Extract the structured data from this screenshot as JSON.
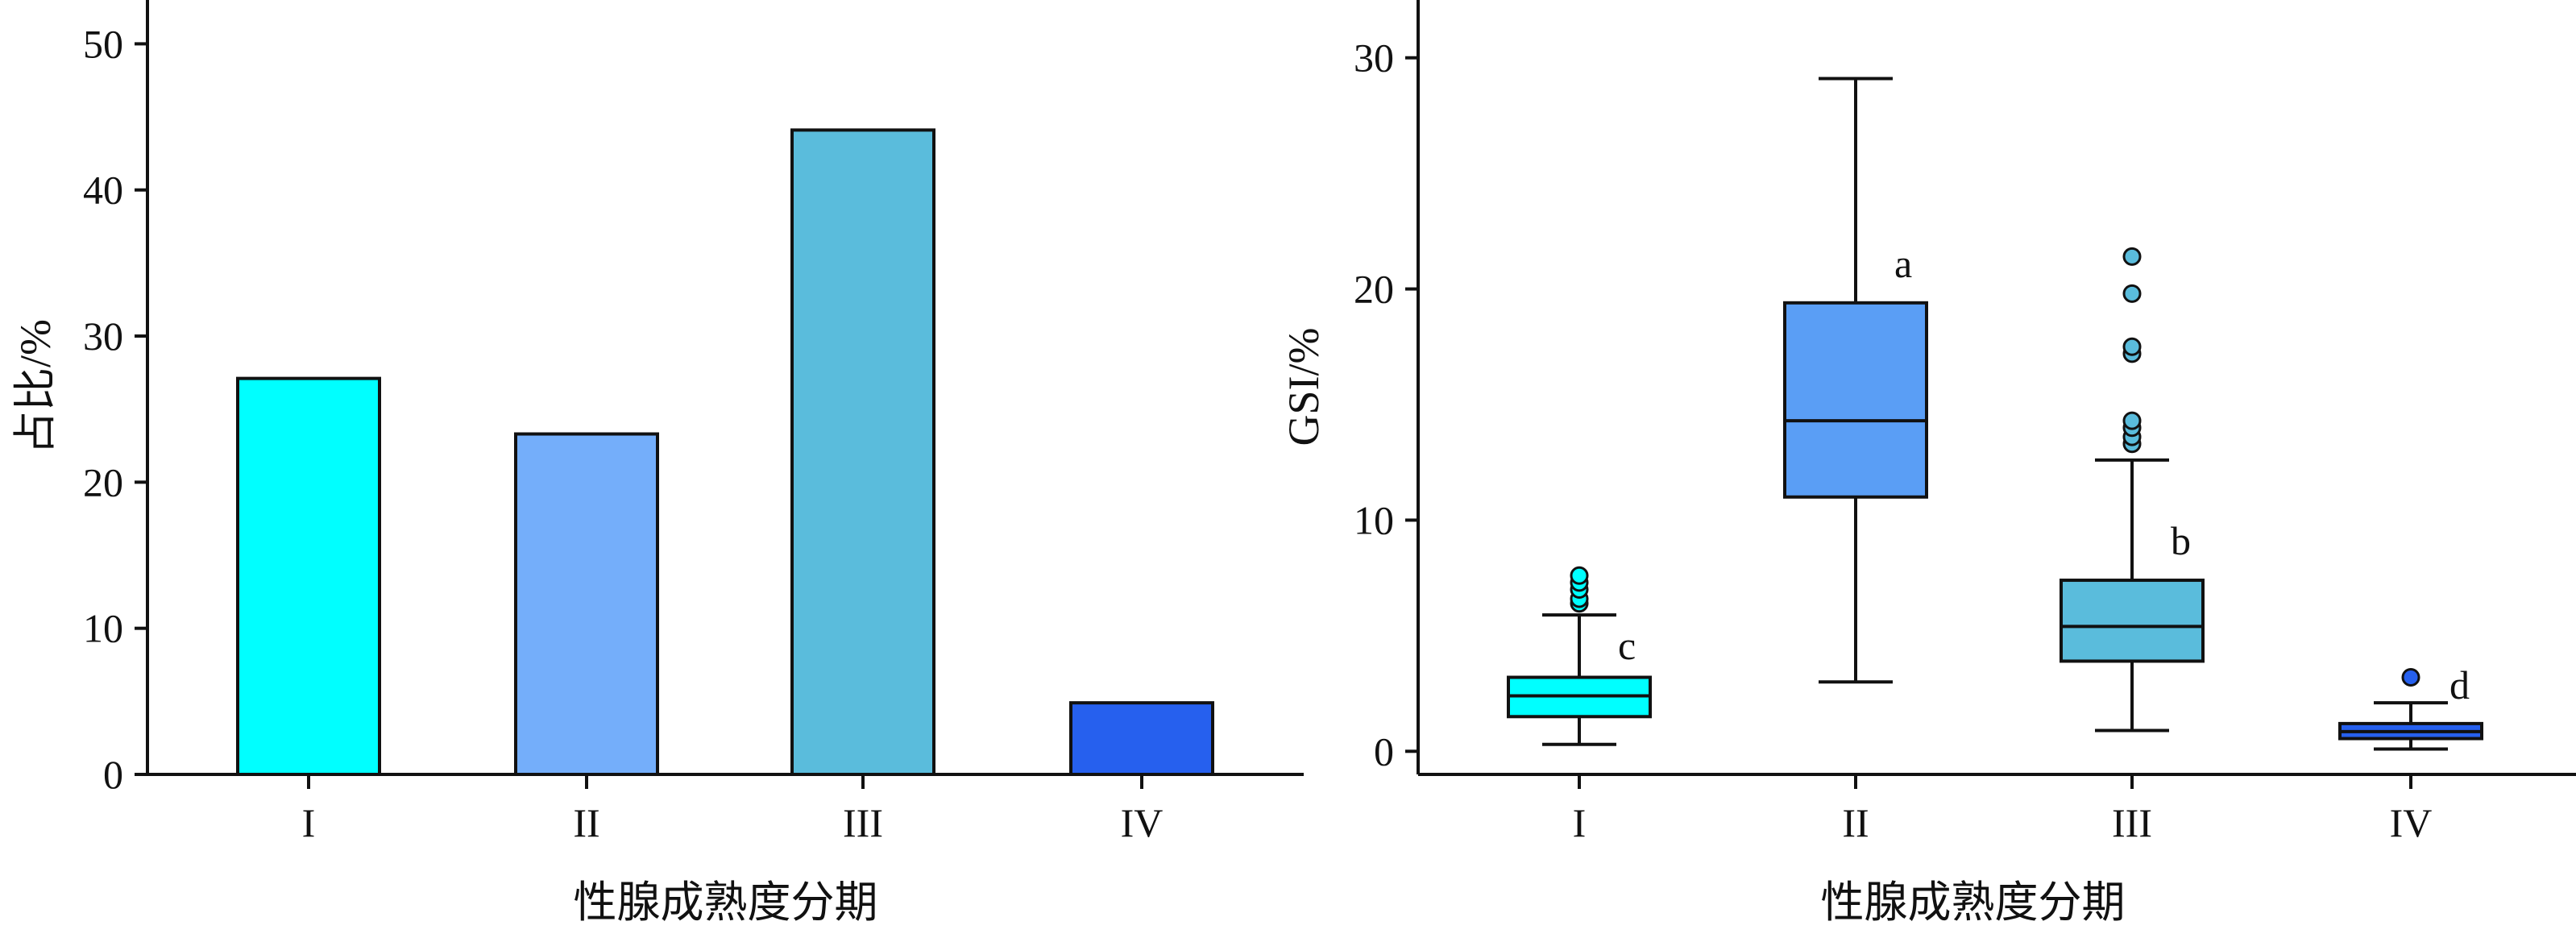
{
  "chart_data": [
    {
      "type": "bar",
      "categories": [
        "I",
        "II",
        "III",
        "IV"
      ],
      "values": [
        27.1,
        23.3,
        44.1,
        4.9
      ],
      "colors": [
        "#00FFFF",
        "#74AEFA",
        "#5ABCDC",
        "#2660EE"
      ],
      "xlabel": "性腺成熟度分期",
      "ylabel": "占比/%",
      "ylim": [
        0,
        53
      ],
      "yticks": [
        0,
        10,
        20,
        30,
        40,
        50
      ],
      "grid": false
    },
    {
      "type": "box",
      "categories": [
        "I",
        "II",
        "III",
        "IV"
      ],
      "boxes": [
        {
          "whisker_low": 0.3,
          "q1": 1.5,
          "median": 2.4,
          "q3": 3.2,
          "whisker_high": 5.9,
          "outliers": [
            6.4,
            6.6,
            7.0,
            7.3,
            7.6
          ],
          "letter": "c"
        },
        {
          "whisker_low": 3.0,
          "q1": 11.0,
          "median": 14.3,
          "q3": 19.4,
          "whisker_high": 29.1,
          "outliers": [],
          "letter": "a"
        },
        {
          "whisker_low": 0.9,
          "q1": 3.9,
          "median": 5.4,
          "q3": 7.4,
          "whisker_high": 12.6,
          "outliers": [
            13.3,
            13.6,
            14.0,
            14.3,
            17.2,
            17.5,
            19.8,
            21.4
          ],
          "letter": "b"
        },
        {
          "whisker_low": 0.1,
          "q1": 0.55,
          "median": 0.85,
          "q3": 1.2,
          "whisker_high": 2.1,
          "outliers": [
            3.2
          ],
          "letter": "d"
        }
      ],
      "colors": [
        "#00FFFF",
        "#5A9EF5",
        "#5ABCDC",
        "#2660EE"
      ],
      "xlabel": "性腺成熟度分期",
      "ylabel": "GSI/%",
      "ylim": [
        -1,
        32.5
      ],
      "yticks": [
        0,
        10,
        20,
        30
      ],
      "grid": false
    }
  ]
}
